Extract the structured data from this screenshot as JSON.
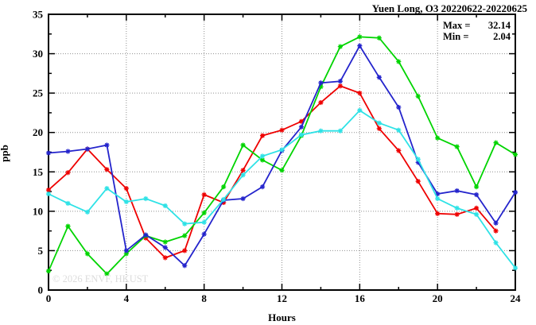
{
  "chart_data": {
    "type": "line",
    "title": "Yuen Long, O3 20220622-20220625",
    "xlabel": "Hours",
    "ylabel": "ppb",
    "xlim": [
      0,
      24
    ],
    "ylim": [
      0,
      35
    ],
    "x_major_ticks": [
      0,
      4,
      8,
      12,
      16,
      20,
      24
    ],
    "x_minor_ticks": [
      2,
      6,
      10,
      14,
      18,
      22
    ],
    "y_major_ticks": [
      0,
      5,
      10,
      15,
      20,
      25,
      30,
      35
    ],
    "y_minor_ticks": [
      2.5,
      7.5,
      12.5,
      17.5,
      22.5,
      27.5,
      32.5
    ],
    "grid": "dotted-at-major-ticks",
    "legend": "none",
    "annotation": {
      "max_label": "Max =",
      "max_value": "32.14",
      "min_label": "Min =",
      "min_value": "2.04"
    },
    "watermark": "© 2026 ENVF, HKUST",
    "x": [
      0,
      1,
      2,
      3,
      4,
      5,
      6,
      7,
      8,
      9,
      10,
      11,
      12,
      13,
      14,
      15,
      16,
      17,
      18,
      19,
      20,
      21,
      22,
      23,
      24
    ],
    "series": [
      {
        "name": "series-1-red",
        "color": "#ee0000",
        "values": [
          12.7,
          14.9,
          17.9,
          15.3,
          12.9,
          6.6,
          4.1,
          5.0,
          12.1,
          11.1,
          15.2,
          19.6,
          20.3,
          21.4,
          23.8,
          25.9,
          25.0,
          20.5,
          17.7,
          13.8,
          9.7,
          9.6,
          10.4,
          7.5,
          null
        ]
      },
      {
        "name": "series-2-green",
        "color": "#00d400",
        "values": [
          2.4,
          8.1,
          4.6,
          2.04,
          4.6,
          6.9,
          6.1,
          6.9,
          9.8,
          13.1,
          18.4,
          16.5,
          15.2,
          19.6,
          25.8,
          30.9,
          32.14,
          32.0,
          29.0,
          24.6,
          19.3,
          18.2,
          13.1,
          18.7,
          17.2
        ]
      },
      {
        "name": "series-3-blue",
        "color": "#2424cc",
        "values": [
          17.4,
          17.6,
          17.9,
          18.4,
          5.0,
          7.0,
          5.4,
          3.1,
          7.1,
          11.4,
          11.6,
          13.1,
          17.7,
          20.7,
          26.3,
          26.5,
          31.0,
          27.0,
          23.2,
          16.2,
          12.2,
          12.6,
          12.1,
          8.5,
          12.4
        ]
      },
      {
        "name": "series-4-cyan",
        "color": "#2ee2e6",
        "values": [
          12.2,
          11.0,
          9.9,
          12.9,
          11.2,
          11.6,
          10.7,
          8.4,
          8.6,
          11.5,
          14.6,
          17.0,
          17.8,
          19.7,
          20.2,
          20.2,
          22.8,
          21.2,
          20.3,
          16.6,
          11.6,
          10.4,
          9.6,
          6.0,
          2.8
        ]
      }
    ]
  }
}
